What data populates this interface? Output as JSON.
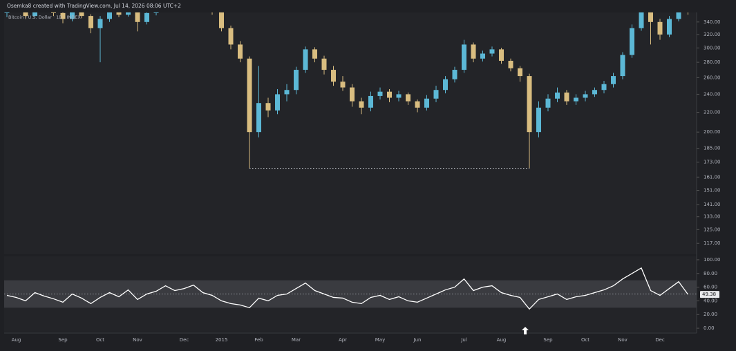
{
  "caption": "Osemka8 created with TradingView.com, Jul 14, 2026 08:06 UTC+2",
  "chart_data": [
    {
      "type": "candlestick",
      "title": "Bitcoin / U.S. Dollar · 1D · INDEX",
      "log_scale": true,
      "up_color": "#5cb8d6",
      "down_color": "#d9bd80",
      "ylim": [
        111,
        356
      ],
      "yticks": [
        {
          "value": 340,
          "label": "340.00"
        },
        {
          "value": 320,
          "label": "320.00"
        },
        {
          "value": 300,
          "label": "300.00"
        },
        {
          "value": 280,
          "label": "280.00"
        },
        {
          "value": 260,
          "label": "260.00"
        },
        {
          "value": 240,
          "label": "240.00"
        },
        {
          "value": 220,
          "label": "220.00"
        },
        {
          "value": 200,
          "label": "200.00"
        },
        {
          "value": 185,
          "label": "185.00"
        },
        {
          "value": 173,
          "label": "173.00"
        },
        {
          "value": 161,
          "label": "161.00"
        },
        {
          "value": 151,
          "label": "151.00"
        },
        {
          "value": 141,
          "label": "141.00"
        },
        {
          "value": 133,
          "label": "133.00"
        },
        {
          "value": 125,
          "label": "125.00"
        },
        {
          "value": 117,
          "label": "117.00"
        }
      ],
      "categories": [
        null,
        "Aug",
        null,
        null,
        null,
        null,
        "Sep",
        null,
        null,
        null,
        "Oct",
        null,
        null,
        null,
        "Nov",
        null,
        null,
        null,
        null,
        "Dec",
        null,
        null,
        null,
        "2015",
        null,
        null,
        null,
        "Feb",
        null,
        null,
        null,
        "Mar",
        null,
        null,
        null,
        null,
        "Apr",
        null,
        null,
        null,
        "May",
        null,
        null,
        null,
        "Jun",
        null,
        null,
        null,
        null,
        "Jul",
        null,
        null,
        null,
        "Aug",
        null,
        null,
        null,
        null,
        "Sep",
        null,
        null,
        null,
        "Oct",
        null,
        null,
        null,
        "Nov",
        null,
        null,
        null,
        "Dec",
        null,
        null,
        null
      ],
      "open": [
        355,
        360,
        365,
        350,
        372,
        368,
        355,
        345,
        362,
        350,
        330,
        345,
        360,
        352,
        370,
        340,
        355,
        362,
        375,
        368,
        372,
        380,
        365,
        358,
        330,
        305,
        285,
        200,
        230,
        222,
        240,
        245,
        270,
        298,
        285,
        270,
        255,
        248,
        232,
        225,
        238,
        243,
        236,
        240,
        232,
        225,
        235,
        245,
        258,
        270,
        305,
        285,
        292,
        298,
        282,
        272,
        262,
        200,
        225,
        235,
        242,
        232,
        236,
        240,
        245,
        252,
        262,
        290,
        330,
        380,
        340,
        320,
        345,
        370
      ],
      "high": [
        366,
        370,
        368,
        376,
        378,
        371,
        358,
        366,
        365,
        353,
        350,
        364,
        365,
        374,
        372,
        359,
        366,
        380,
        379,
        376,
        385,
        383,
        369,
        362,
        334,
        310,
        288,
        275,
        236,
        246,
        252,
        274,
        302,
        301,
        289,
        275,
        262,
        252,
        236,
        243,
        248,
        246,
        244,
        242,
        234,
        239,
        250,
        262,
        274,
        312,
        308,
        296,
        302,
        300,
        285,
        275,
        265,
        232,
        240,
        248,
        245,
        240,
        244,
        248,
        256,
        266,
        294,
        336,
        392,
        384,
        345,
        350,
        376,
        374
      ],
      "low": [
        348,
        356,
        345,
        347,
        362,
        350,
        338,
        341,
        346,
        322,
        280,
        340,
        348,
        349,
        325,
        336,
        351,
        358,
        362,
        363,
        368,
        360,
        352,
        325,
        298,
        280,
        168,
        195,
        215,
        218,
        232,
        240,
        266,
        280,
        264,
        250,
        244,
        226,
        218,
        221,
        234,
        231,
        232,
        228,
        220,
        222,
        231,
        241,
        254,
        266,
        280,
        281,
        288,
        278,
        268,
        255,
        168,
        195,
        221,
        231,
        228,
        228,
        232,
        237,
        241,
        248,
        258,
        286,
        326,
        305,
        312,
        316,
        341,
        352
      ],
      "close": [
        360,
        365,
        350,
        372,
        368,
        355,
        345,
        362,
        350,
        330,
        345,
        360,
        352,
        370,
        340,
        355,
        362,
        375,
        368,
        372,
        380,
        365,
        358,
        330,
        305,
        285,
        200,
        230,
        222,
        240,
        245,
        270,
        298,
        285,
        270,
        255,
        248,
        232,
        225,
        238,
        243,
        236,
        240,
        232,
        225,
        235,
        245,
        258,
        270,
        305,
        285,
        292,
        298,
        282,
        272,
        262,
        200,
        225,
        235,
        242,
        232,
        236,
        240,
        245,
        252,
        262,
        290,
        330,
        380,
        340,
        320,
        345,
        370,
        360
      ]
    },
    {
      "type": "line",
      "color": "#ffffff",
      "band_color": "#3a3b40",
      "bands": [
        30,
        70
      ],
      "midline": 50,
      "ylim": [
        -5,
        105
      ],
      "yticks": [
        {
          "value": 100,
          "label": "100.00"
        },
        {
          "value": 80,
          "label": "80.00"
        },
        {
          "value": 60,
          "label": "60.00"
        },
        {
          "value": 40,
          "label": "40.00"
        },
        {
          "value": 20,
          "label": "20.00"
        },
        {
          "value": 0,
          "label": "0.00"
        }
      ],
      "values": [
        48,
        45,
        40,
        52,
        47,
        43,
        38,
        50,
        44,
        36,
        45,
        52,
        46,
        56,
        42,
        50,
        54,
        62,
        55,
        58,
        63,
        52,
        48,
        40,
        36,
        34,
        30,
        44,
        40,
        48,
        50,
        58,
        66,
        55,
        50,
        45,
        44,
        38,
        36,
        45,
        48,
        42,
        46,
        40,
        38,
        44,
        50,
        56,
        60,
        72,
        55,
        60,
        62,
        52,
        48,
        45,
        28,
        42,
        46,
        50,
        42,
        46,
        48,
        52,
        56,
        62,
        72,
        80,
        88,
        55,
        48,
        58,
        68,
        49.38
      ]
    }
  ]
}
